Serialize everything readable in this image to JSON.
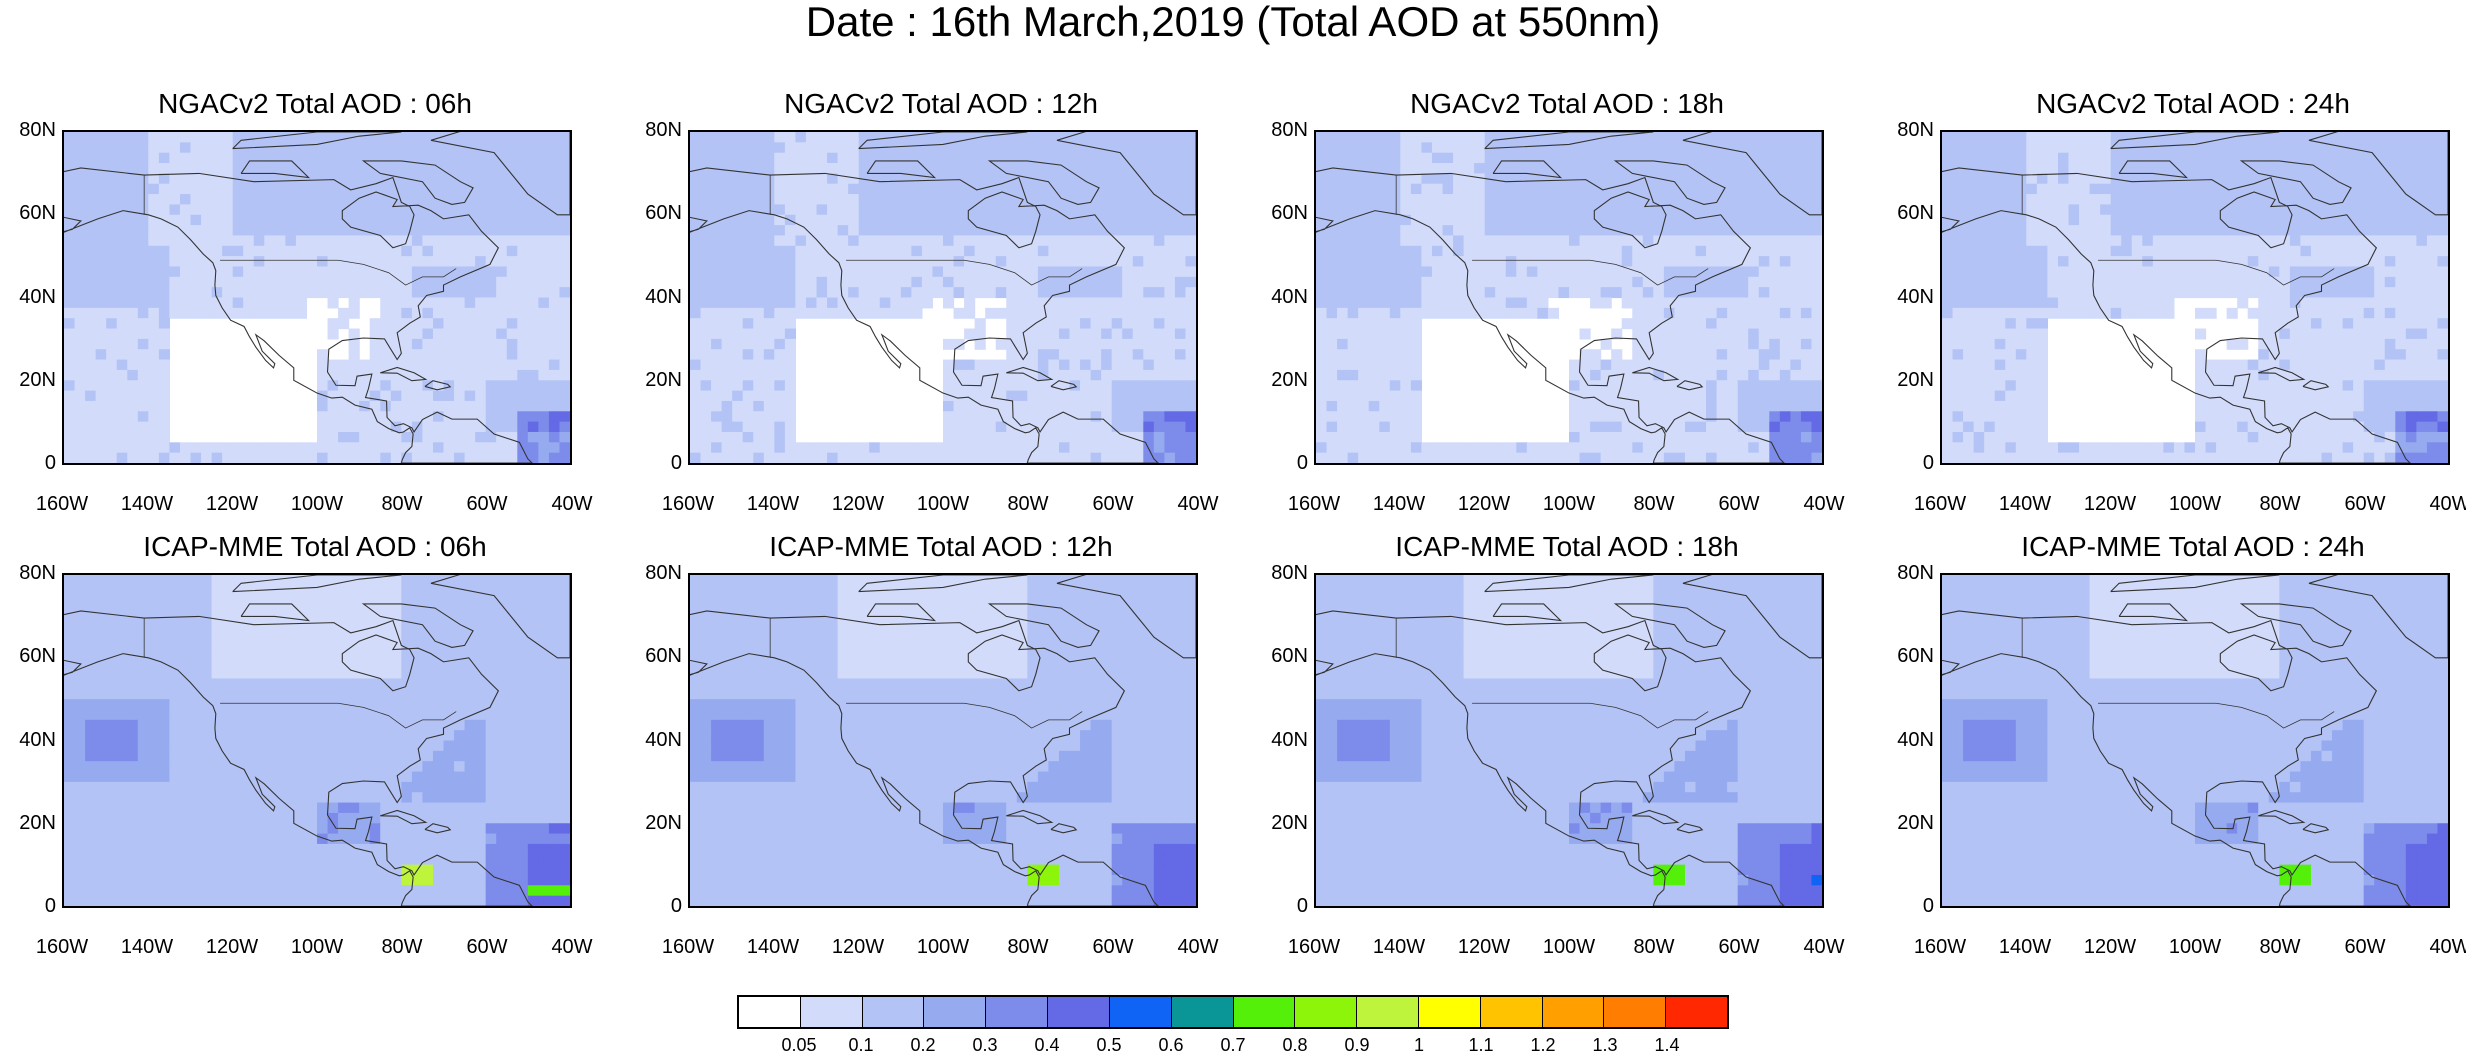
{
  "title": "Date : 16th March,2019 (Total AOD at 550nm)",
  "panels": [
    {
      "title": "NGACv2 Total AOD : 06h",
      "model": "ngac"
    },
    {
      "title": "NGACv2 Total AOD : 12h",
      "model": "ngac"
    },
    {
      "title": "NGACv2 Total AOD : 18h",
      "model": "ngac"
    },
    {
      "title": "NGACv2 Total AOD : 24h",
      "model": "ngac"
    },
    {
      "title": "ICAP-MME Total AOD : 06h",
      "model": "icap"
    },
    {
      "title": "ICAP-MME Total AOD : 12h",
      "model": "icap"
    },
    {
      "title": "ICAP-MME Total AOD : 18h",
      "model": "icap"
    },
    {
      "title": "ICAP-MME Total AOD : 24h",
      "model": "icap"
    }
  ],
  "axes": {
    "lat_labels": [
      "80N",
      "60N",
      "40N",
      "20N",
      "0"
    ],
    "lon_labels": [
      "160W",
      "140W",
      "120W",
      "100W",
      "80W",
      "60W",
      "40W"
    ],
    "lat_range": [
      0,
      80
    ],
    "lon_range": [
      -160,
      -40
    ]
  },
  "colorbar": {
    "colors": [
      "#ffffff",
      "#d2dcfa",
      "#b4c3f5",
      "#96aaf0",
      "#7d8ceb",
      "#6469e6",
      "#0f64f5",
      "#0a9696",
      "#55f00a",
      "#8cf50a",
      "#bef53c",
      "#ffff00",
      "#ffc300",
      "#ffa000",
      "#ff7d00",
      "#ff2800"
    ],
    "labels": [
      "0.05",
      "0.1",
      "0.2",
      "0.3",
      "0.4",
      "0.5",
      "0.6",
      "0.7",
      "0.8",
      "0.9",
      "1",
      "1.1",
      "1.2",
      "1.3",
      "1.4"
    ]
  },
  "ocean_color": "#d2dcfa",
  "coast_color": "#333333"
}
